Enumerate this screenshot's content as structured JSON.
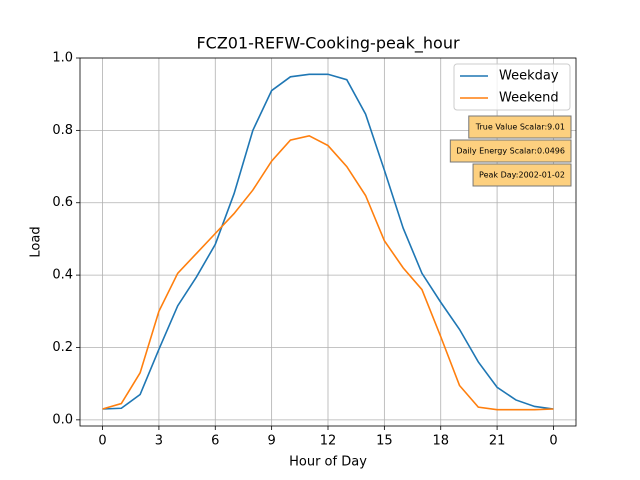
{
  "chart_data": {
    "type": "line",
    "title": "FCZ01-REFW-Cooking-peak_hour",
    "x_label": "Hour of Day",
    "y_label": "Load",
    "x": [
      0,
      1,
      2,
      3,
      4,
      5,
      6,
      7,
      8,
      9,
      10,
      11,
      12,
      13,
      14,
      15,
      16,
      17,
      18,
      19,
      20,
      21,
      22,
      23,
      24
    ],
    "series": [
      {
        "name": "Weekday",
        "color": "#1f77b4",
        "values": [
          0.03,
          0.032,
          0.07,
          0.195,
          0.315,
          0.395,
          0.485,
          0.625,
          0.8,
          0.91,
          0.948,
          0.955,
          0.955,
          0.94,
          0.845,
          0.69,
          0.53,
          0.405,
          0.325,
          0.25,
          0.16,
          0.09,
          0.055,
          0.037,
          0.03
        ]
      },
      {
        "name": "Weekend",
        "color": "#ff7f0e",
        "values": [
          0.03,
          0.045,
          0.13,
          0.3,
          0.405,
          0.46,
          0.515,
          0.57,
          0.635,
          0.715,
          0.773,
          0.785,
          0.758,
          0.7,
          0.62,
          0.495,
          0.42,
          0.36,
          0.23,
          0.095,
          0.035,
          0.028,
          0.028,
          0.028,
          0.03
        ]
      }
    ],
    "xlim": [
      -1.2,
      25.2
    ],
    "xticks": [
      0,
      3,
      6,
      9,
      12,
      15,
      18,
      21,
      {
        "value": 24,
        "label": "0"
      }
    ],
    "ylim": [
      -0.017,
      1.0
    ],
    "yticks": [
      {
        "value": 0,
        "label": "0.0"
      },
      {
        "value": 0.2,
        "label": "0.2"
      },
      {
        "value": 0.4,
        "label": "0.4"
      },
      {
        "value": 0.6,
        "label": "0.6"
      },
      {
        "value": 0.8,
        "label": "0.8"
      },
      {
        "value": 1.0,
        "label": "1.0"
      }
    ],
    "grid": true,
    "legend": "upper right",
    "annotations": [
      "True Value Scalar:9.01",
      "Daily Energy Scalar:0.0496",
      "Peak Day:2002-01-02"
    ],
    "annotation_color": "#fdd07f"
  }
}
